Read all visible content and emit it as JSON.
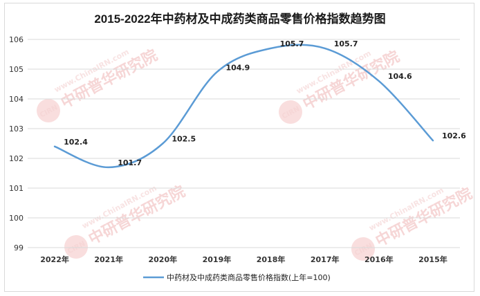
{
  "chart_data": {
    "type": "line",
    "title": "2015-2022年中药材及中成药类商品零售价格指数趋势图",
    "categories": [
      "2022年",
      "2021年",
      "2020年",
      "2019年",
      "2018年",
      "2017年",
      "2016年",
      "2015年"
    ],
    "series": [
      {
        "name": "中药材及中成药类商品零售价格指数(上年=100)",
        "values": [
          102.4,
          101.7,
          102.5,
          104.9,
          105.7,
          105.7,
          104.6,
          102.6
        ],
        "color": "#5b9bd5"
      }
    ],
    "ylim": [
      99,
      106
    ],
    "yticks": [
      99,
      100,
      101,
      102,
      103,
      104,
      105,
      106
    ],
    "grid": true,
    "legend_position": "bottom",
    "watermark": {
      "text": "中研普华研究院",
      "url": "www.ChinaIRN.com",
      "logo": "CIRN"
    }
  }
}
